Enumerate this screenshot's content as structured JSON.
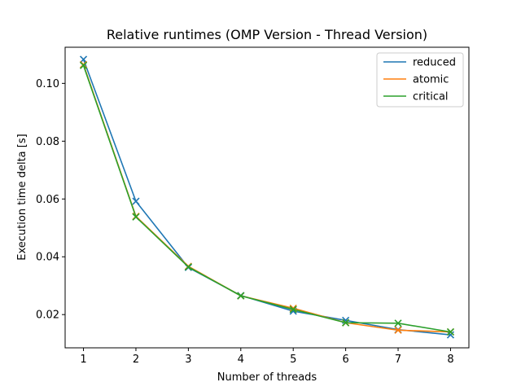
{
  "chart_data": {
    "type": "line",
    "title": "Relative runtimes (OMP Version - Thread Version)",
    "xlabel": "Number of threads",
    "ylabel": "Execution time delta [s]",
    "x": [
      1,
      2,
      3,
      4,
      5,
      6,
      7,
      8
    ],
    "xlim": [
      0.65,
      8.35
    ],
    "ylim": [
      0.0085,
      0.1125
    ],
    "xticks": [
      1,
      2,
      3,
      4,
      5,
      6,
      7,
      8
    ],
    "yticks": [
      0.02,
      0.04,
      0.06,
      0.08,
      0.1
    ],
    "ytick_labels": [
      "0.02",
      "0.04",
      "0.06",
      "0.08",
      "0.10"
    ],
    "marker": "x",
    "grid": false,
    "legend_position": "top-right",
    "series": [
      {
        "name": "reduced",
        "color": "#1f77b4",
        "values": [
          0.1083,
          0.0592,
          0.0363,
          0.0266,
          0.0212,
          0.018,
          0.0148,
          0.013
        ]
      },
      {
        "name": "atomic",
        "color": "#ff7f0e",
        "values": [
          0.1065,
          0.054,
          0.0367,
          0.0265,
          0.0222,
          0.0172,
          0.0146,
          0.014
        ]
      },
      {
        "name": "critical",
        "color": "#2ca02c",
        "values": [
          0.1062,
          0.0538,
          0.0365,
          0.0265,
          0.0218,
          0.0172,
          0.017,
          0.014
        ]
      }
    ]
  }
}
